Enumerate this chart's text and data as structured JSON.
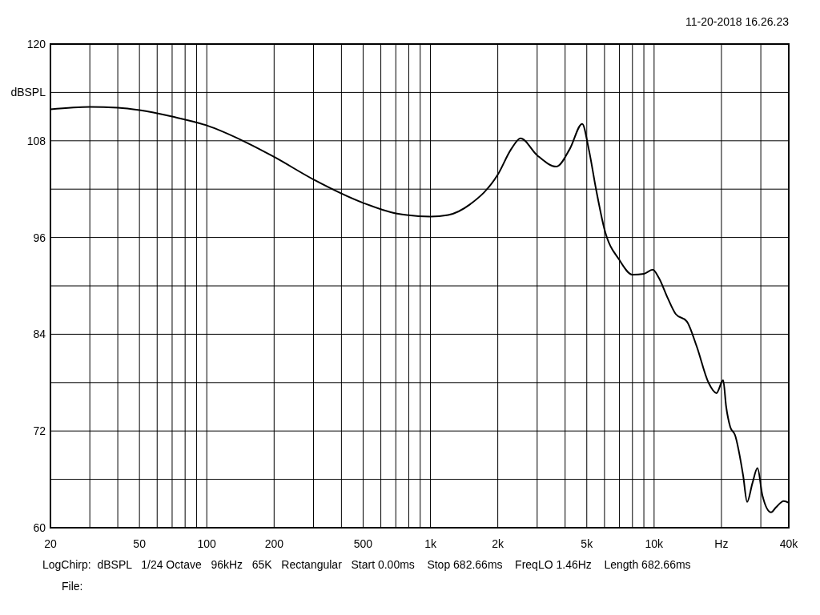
{
  "chart_data": {
    "type": "line",
    "xlabel": "Hz",
    "ylabel": "dBSPL",
    "log": "x",
    "grid": true,
    "line_style": "solid",
    "xlim": [
      20,
      40000
    ],
    "ylim": [
      60,
      120
    ],
    "xticks": [
      20,
      {
        "value": 30,
        "label": null
      },
      {
        "value": 40,
        "label": null
      },
      50,
      {
        "value": 60,
        "label": null
      },
      {
        "value": 70,
        "label": null
      },
      {
        "value": 80,
        "label": null
      },
      {
        "value": 90,
        "label": null
      },
      100,
      200,
      {
        "value": 300,
        "label": null
      },
      {
        "value": 400,
        "label": null
      },
      500,
      {
        "value": 600,
        "label": null
      },
      {
        "value": 700,
        "label": null
      },
      {
        "value": 800,
        "label": null
      },
      {
        "value": 900,
        "label": null
      },
      {
        "value": 1000,
        "label": "1k"
      },
      {
        "value": 2000,
        "label": "2k"
      },
      {
        "value": 3000,
        "label": null
      },
      {
        "value": 4000,
        "label": null
      },
      {
        "value": 5000,
        "label": "5k"
      },
      {
        "value": 6000,
        "label": null
      },
      {
        "value": 7000,
        "label": null
      },
      {
        "value": 8000,
        "label": null
      },
      {
        "value": 9000,
        "label": null
      },
      {
        "value": 10000,
        "label": "10k"
      },
      {
        "value": 20000,
        "label": null
      },
      {
        "value": 30000,
        "label": null
      },
      {
        "value": 40000,
        "label": "40k"
      }
    ],
    "yticks": [
      60,
      {
        "value": 66,
        "label": null
      },
      72,
      {
        "value": 78,
        "label": null
      },
      84,
      {
        "value": 90,
        "label": null
      },
      96,
      {
        "value": 102,
        "label": null
      },
      108,
      {
        "value": 114,
        "label": null
      },
      120
    ],
    "annotations": [
      "11-20-2018 16.26.23",
      "LogChirp:  dBSPL   1/24 Octave   96kHz   65K   Rectangular   Start 0.00ms    Stop 682.66ms    FreqLO 1.46Hz    Length 682.66ms",
      "File:"
    ],
    "series": [
      {
        "color": "#000000",
        "x": [
          20,
          30,
          40,
          50,
          70,
          100,
          150,
          200,
          300,
          500,
          700,
          1000,
          1200,
          1500,
          2000,
          2300,
          2530,
          3000,
          3660,
          4200,
          4770,
          5100,
          5500,
          6000,
          7000,
          8000,
          9000,
          9850,
          10500,
          11500,
          12500,
          14000,
          15500,
          17500,
          19000,
          20350,
          21000,
          21900,
          23000,
          25000,
          26060,
          27500,
          28990,
          30500,
          33350,
          35000,
          38000,
          40000
        ],
        "values": [
          111.9,
          112.2,
          112.1,
          111.8,
          111.0,
          109.9,
          107.8,
          106.0,
          103.2,
          100.3,
          99.0,
          98.6,
          98.8,
          100.1,
          103.8,
          107.0,
          108.3,
          106.2,
          104.8,
          107.0,
          110.1,
          107,
          102,
          97,
          93.2,
          91.4,
          91.5,
          92,
          91,
          88.5,
          86.5,
          85.6,
          82.5,
          78,
          76.7,
          78.3,
          75,
          72.5,
          71.5,
          66.5,
          63.2,
          65.5,
          67.4,
          64,
          61.9,
          62.5,
          63.3,
          63.1
        ]
      }
    ]
  }
}
